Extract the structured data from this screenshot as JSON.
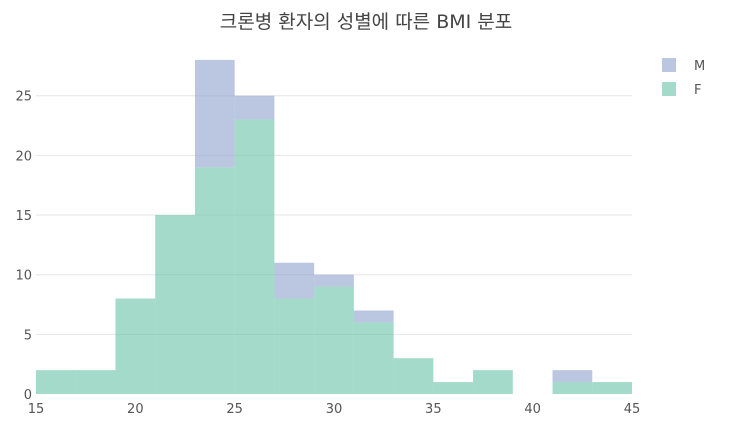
{
  "chart_data": {
    "type": "bar",
    "mode": "stacked-histogram",
    "title": "크론병 환자의 성별에 따른 BMI 분포",
    "xlabel": "",
    "ylabel": "",
    "xlim": [
      15,
      45
    ],
    "ylim": [
      0,
      29
    ],
    "x_ticks": [
      15,
      20,
      25,
      30,
      35,
      40,
      45
    ],
    "y_ticks": [
      0,
      5,
      10,
      15,
      20,
      25
    ],
    "bin_width": 2,
    "bin_starts": [
      15,
      17,
      19,
      21,
      23,
      25,
      27,
      29,
      31,
      33,
      35,
      37,
      39,
      41,
      43
    ],
    "series": [
      {
        "name": "F",
        "color": "#66c2a5",
        "values": [
          2,
          2,
          8,
          15,
          19,
          23,
          8,
          9,
          6,
          3,
          1,
          2,
          0,
          1,
          1
        ]
      },
      {
        "name": "M",
        "color": "#8da0cb",
        "values": [
          0,
          0,
          0,
          0,
          9,
          2,
          3,
          1,
          1,
          0,
          0,
          0,
          0,
          1,
          0
        ]
      }
    ],
    "legend": {
      "placement": "top-right",
      "order": [
        "M",
        "F"
      ]
    },
    "grid": true
  }
}
